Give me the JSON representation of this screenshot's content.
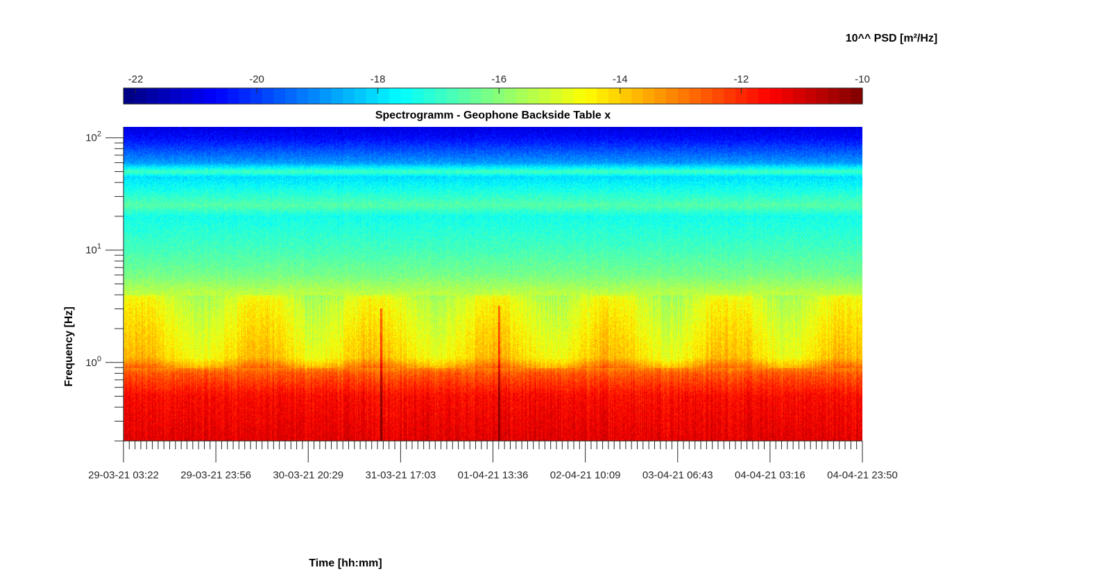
{
  "chart_data": {
    "type": "heatmap",
    "title": "Spectrogramm - Geophone Backside Table x",
    "xlabel": "Time [hh:mm]",
    "ylabel": "Frequency [Hz]",
    "colorbar_label": "10^^ PSD [m²/Hz]",
    "colormap": "jet",
    "colorbar": {
      "range": [
        -22.2,
        -10
      ],
      "ticks": [
        -22,
        -20,
        -18,
        -16,
        -14,
        -12,
        -10
      ],
      "tick_labels": [
        "-22",
        "-20",
        "-18",
        "-16",
        "-14",
        "-12",
        "-10"
      ]
    },
    "x_ticks": [
      "29-03-21 03:22",
      "29-03-21 23:56",
      "30-03-21 20:29",
      "31-03-21 17:03",
      "01-04-21 13:36",
      "02-04-21 10:09",
      "03-04-21 06:43",
      "04-04-21 03:16",
      "04-04-21 23:50"
    ],
    "y_scale": "log",
    "y_range": [
      0.2,
      125
    ],
    "y_ticks": [
      {
        "value": 1,
        "base": "10",
        "exp": "0"
      },
      {
        "value": 10,
        "base": "10",
        "exp": "1"
      },
      {
        "value": 100,
        "base": "10",
        "exp": "2"
      }
    ],
    "psd_profile_log10": [
      {
        "freq": 0.2,
        "psd": -11.2
      },
      {
        "freq": 0.5,
        "psd": -11.6
      },
      {
        "freq": 0.8,
        "psd": -12.6
      },
      {
        "freq": 1.1,
        "psd": -14.2
      },
      {
        "freq": 2.0,
        "psd": -14.6
      },
      {
        "freq": 3.5,
        "psd": -15.0
      },
      {
        "freq": 6,
        "psd": -16.2
      },
      {
        "freq": 10,
        "psd": -16.8
      },
      {
        "freq": 20,
        "psd": -17.4
      },
      {
        "freq": 25,
        "psd": -16.6
      },
      {
        "freq": 45,
        "psd": -18.0
      },
      {
        "freq": 50,
        "psd": -16.8
      },
      {
        "freq": 60,
        "psd": -18.8
      },
      {
        "freq": 100,
        "psd": -20.6
      },
      {
        "freq": 125,
        "psd": -21.0
      }
    ],
    "spikes": [
      {
        "time": "31-03-21 07:50",
        "freq_max": 3.0
      },
      {
        "time": "01-04-21 12:00",
        "freq_max": 3.2
      }
    ]
  }
}
